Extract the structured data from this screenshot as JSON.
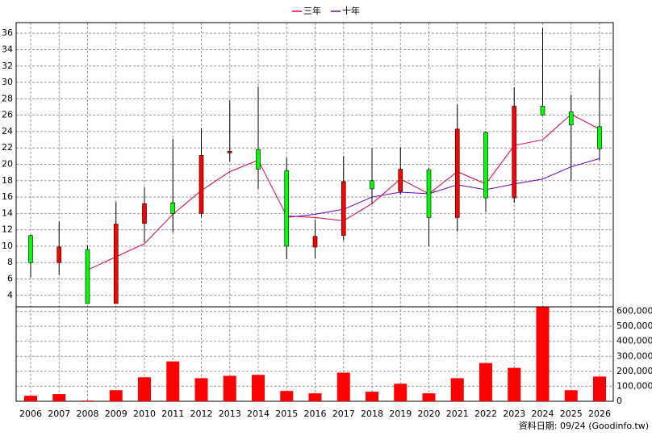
{
  "chart_data": {
    "type": "candlestick",
    "categories": [
      "2006",
      "2007",
      "2008",
      "2009",
      "2010",
      "2011",
      "2012",
      "2013",
      "2014",
      "2015",
      "2016",
      "2017",
      "2018",
      "2019",
      "2020",
      "2021",
      "2022",
      "2023",
      "2024",
      "2025",
      "2026"
    ],
    "open": [
      11.3,
      8.0,
      9.6,
      3.0,
      12.8,
      15.3,
      14.0,
      21.4,
      21.8,
      19.2,
      9.9,
      11.3,
      18.0,
      16.7,
      19.3,
      13.5,
      23.9,
      15.9,
      27.1,
      26.4,
      24.6
    ],
    "high": [
      11.4,
      13.0,
      10.1,
      15.4,
      17.2,
      23.1,
      24.4,
      27.8,
      29.5,
      20.8,
      13.2,
      21.0,
      22.0,
      22.1,
      19.6,
      27.3,
      24.0,
      29.4,
      36.6,
      28.5,
      31.6
    ],
    "low": [
      6.2,
      6.5,
      3.0,
      3.0,
      10.5,
      11.7,
      13.6,
      20.3,
      17.0,
      8.4,
      8.5,
      10.7,
      15.2,
      16.3,
      10.0,
      11.8,
      14.2,
      15.3,
      26.0,
      18.0,
      20.5
    ],
    "close": [
      8.0,
      9.9,
      3.0,
      12.7,
      15.2,
      14.0,
      21.1,
      21.6,
      19.4,
      10.0,
      11.2,
      17.9,
      17.0,
      19.4,
      13.5,
      24.3,
      15.9,
      27.1,
      26.0,
      24.8,
      21.9
    ],
    "up_color": "#ff0000",
    "down_color": "#00ff00",
    "series": [
      {
        "name": "三年",
        "color": "#e0004a",
        "values": [
          null,
          null,
          7.1,
          8.7,
          10.3,
          13.9,
          16.8,
          19.1,
          20.5,
          13.7,
          13.5,
          13.1,
          15.2,
          18.2,
          16.4,
          19.1,
          17.6,
          22.3,
          23.0,
          26.1,
          24.3
        ]
      },
      {
        "name": "十年",
        "color": "#6a00c8",
        "values": [
          null,
          null,
          null,
          null,
          null,
          null,
          null,
          null,
          null,
          13.5,
          13.9,
          14.5,
          16.0,
          16.6,
          16.4,
          17.5,
          16.9,
          17.6,
          18.2,
          19.7,
          20.7
        ]
      }
    ],
    "volume": {
      "color": "#ff0000",
      "axis": "y2",
      "values": [
        37000,
        48000,
        5000,
        74000,
        160000,
        266000,
        154000,
        170000,
        176000,
        69000,
        53000,
        191000,
        64000,
        117000,
        53000,
        154000,
        255000,
        223000,
        628000,
        74000,
        165000
      ]
    },
    "ylim": [
      2.6,
      37.3
    ],
    "yticks": [
      4,
      6,
      8,
      10,
      12,
      14,
      16,
      18,
      20,
      22,
      24,
      26,
      28,
      30,
      32,
      34,
      36
    ],
    "y2lim": [
      0,
      630000
    ],
    "y2ticks": [
      0,
      {
        "value": 100000,
        "label": "100,000"
      },
      {
        "value": 200000,
        "label": "200,000"
      },
      {
        "value": 300000,
        "label": "300,000"
      },
      {
        "value": 400000,
        "label": "400,000"
      },
      {
        "value": 500000,
        "label": "500,000"
      },
      {
        "value": 600000,
        "label": "600,000"
      }
    ],
    "grid": true,
    "source_note": "資料日期: 09/24 (Goodinfo.tw)"
  }
}
